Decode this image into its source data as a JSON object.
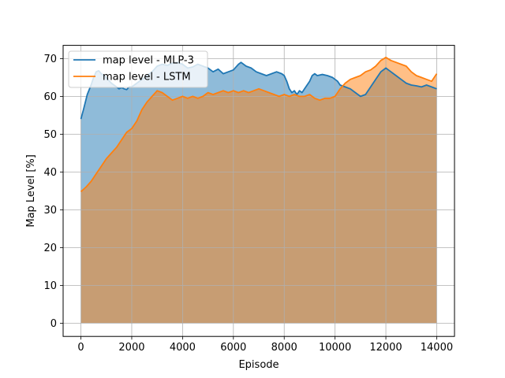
{
  "chart_data": {
    "type": "area",
    "xlabel": "Episode",
    "ylabel": "Map Level [%]",
    "xlim": [
      -700,
      14700
    ],
    "ylim": [
      -3.5,
      73.5
    ],
    "xticks": [
      0,
      2000,
      4000,
      6000,
      8000,
      10000,
      12000,
      14000
    ],
    "yticks": [
      0,
      10,
      20,
      30,
      40,
      50,
      60,
      70
    ],
    "grid": true,
    "legend_position": "upper-left",
    "series": [
      {
        "name": "map level - MLP-3",
        "color": "#1f77b4",
        "fill_color": "#1f77b4",
        "fill_opacity": 0.5,
        "x": [
          0,
          100,
          250,
          400,
          500,
          600,
          700,
          800,
          900,
          1000,
          1100,
          1200,
          1300,
          1400,
          1500,
          1600,
          1700,
          1800,
          1900,
          2000,
          2200,
          2400,
          2600,
          2800,
          3000,
          3200,
          3400,
          3600,
          3800,
          4000,
          4200,
          4400,
          4600,
          4800,
          5000,
          5200,
          5400,
          5600,
          5800,
          6000,
          6200,
          6300,
          6500,
          6700,
          6900,
          7100,
          7300,
          7500,
          7700,
          7900,
          8000,
          8100,
          8200,
          8300,
          8400,
          8500,
          8600,
          8700,
          8800,
          8900,
          9000,
          9100,
          9200,
          9300,
          9500,
          9700,
          9900,
          10000,
          10100,
          10200,
          10400,
          10600,
          10800,
          11000,
          11200,
          11400,
          11600,
          11800,
          12000,
          12100,
          12200,
          12400,
          12600,
          12800,
          13000,
          13200,
          13400,
          13600,
          13800,
          14000
        ],
        "values": [
          54.0,
          56.5,
          60.5,
          63.0,
          65.0,
          66.5,
          66.8,
          66.0,
          65.5,
          65.0,
          64.2,
          63.5,
          63.0,
          62.5,
          62.0,
          62.3,
          62.0,
          61.8,
          62.5,
          62.5,
          63.5,
          64.5,
          65.5,
          66.5,
          68.0,
          68.5,
          68.2,
          68.8,
          69.0,
          68.5,
          67.5,
          67.8,
          68.5,
          68.0,
          67.5,
          66.5,
          67.2,
          66.0,
          66.5,
          67.0,
          68.5,
          69.0,
          68.0,
          67.5,
          66.5,
          66.0,
          65.5,
          66.0,
          66.5,
          66.0,
          65.5,
          64.0,
          62.0,
          61.0,
          61.5,
          60.5,
          61.5,
          61.0,
          62.0,
          63.0,
          64.0,
          65.5,
          66.0,
          65.5,
          65.8,
          65.5,
          65.0,
          64.5,
          64.0,
          63.0,
          62.5,
          62.0,
          61.0,
          60.0,
          60.5,
          62.5,
          64.5,
          66.5,
          67.5,
          67.0,
          66.5,
          65.5,
          64.5,
          63.5,
          63.0,
          62.8,
          62.5,
          63.0,
          62.5,
          62.0
        ]
      },
      {
        "name": "map level - LSTM",
        "color": "#ff7f0e",
        "fill_color": "#ff7f0e",
        "fill_opacity": 0.5,
        "x": [
          0,
          200,
          400,
          600,
          800,
          1000,
          1200,
          1400,
          1600,
          1800,
          2000,
          2200,
          2400,
          2600,
          2800,
          3000,
          3200,
          3400,
          3600,
          3800,
          4000,
          4200,
          4400,
          4600,
          4800,
          5000,
          5200,
          5400,
          5600,
          5800,
          6000,
          6200,
          6400,
          6600,
          6800,
          7000,
          7200,
          7400,
          7600,
          7800,
          8000,
          8200,
          8400,
          8600,
          8800,
          9000,
          9200,
          9400,
          9600,
          9800,
          10000,
          10200,
          10400,
          10600,
          10800,
          11000,
          11200,
          11400,
          11600,
          11800,
          12000,
          12200,
          12400,
          12600,
          12800,
          13000,
          13200,
          13400,
          13600,
          13800,
          14000
        ],
        "values": [
          34.8,
          36.0,
          37.5,
          39.5,
          41.5,
          43.5,
          45.0,
          46.5,
          48.5,
          50.5,
          51.5,
          53.5,
          56.5,
          58.5,
          60.0,
          61.5,
          61.0,
          60.0,
          59.0,
          59.5,
          60.0,
          59.5,
          60.0,
          59.5,
          60.0,
          61.0,
          60.5,
          61.0,
          61.5,
          61.0,
          61.5,
          61.0,
          61.5,
          61.0,
          61.5,
          62.0,
          61.5,
          61.0,
          60.5,
          60.0,
          60.5,
          60.0,
          60.5,
          60.0,
          60.0,
          60.5,
          59.5,
          59.0,
          59.5,
          59.5,
          60.0,
          62.0,
          63.5,
          64.5,
          65.0,
          65.5,
          66.5,
          67.0,
          68.0,
          69.5,
          70.3,
          69.5,
          69.0,
          68.5,
          68.0,
          66.5,
          65.5,
          65.0,
          64.5,
          64.0,
          66.0
        ]
      }
    ]
  }
}
